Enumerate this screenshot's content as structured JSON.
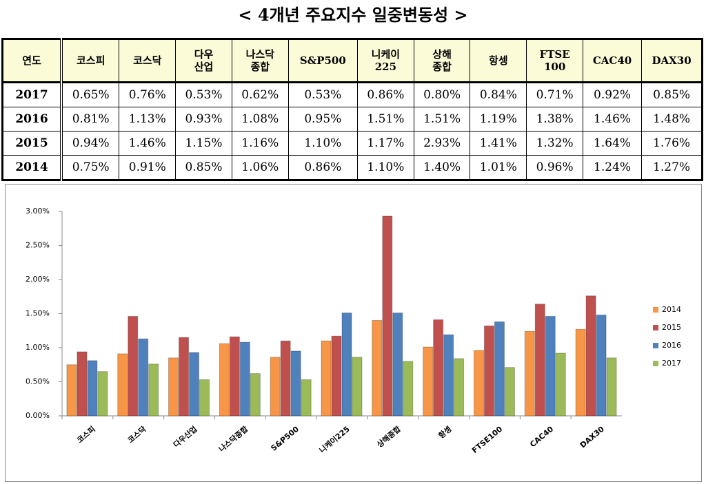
{
  "title": "< 4개년 주요지수 일중변동성 >",
  "table": {
    "header": [
      "연도",
      "코스피",
      "코스닥",
      "다우\n산업",
      "나스닥\n종합",
      "S&P500",
      "니케이\n225",
      "상해\n종합",
      "항셍",
      "FTSE\n100",
      "CAC40",
      "DAX30"
    ],
    "rows": [
      [
        "2017",
        "0.65%",
        "0.76%",
        "0.53%",
        "0.62%",
        "0.53%",
        "0.86%",
        "0.80%",
        "0.84%",
        "0.71%",
        "0.92%",
        "0.85%"
      ],
      [
        "2016",
        "0.81%",
        "1.13%",
        "0.93%",
        "1.08%",
        "0.95%",
        "1.51%",
        "1.51%",
        "1.19%",
        "1.38%",
        "1.46%",
        "1.48%"
      ],
      [
        "2015",
        "0.94%",
        "1.46%",
        "1.15%",
        "1.16%",
        "1.10%",
        "1.17%",
        "2.93%",
        "1.41%",
        "1.32%",
        "1.64%",
        "1.76%"
      ],
      [
        "2014",
        "0.75%",
        "0.91%",
        "0.85%",
        "1.06%",
        "0.86%",
        "1.10%",
        "1.40%",
        "1.01%",
        "0.96%",
        "1.24%",
        "1.27%"
      ]
    ]
  },
  "chart_data": {
    "type": "bar",
    "categories": [
      "코스피",
      "코스닥",
      "다우산업",
      "나스닥종합",
      "S&P500",
      "니케이225",
      "상해종합",
      "항셍",
      "FTSE100",
      "CAC40",
      "DAX30"
    ],
    "series": [
      {
        "name": "2014",
        "color": "#f79646",
        "values": [
          0.75,
          0.91,
          0.85,
          1.06,
          0.86,
          1.1,
          1.4,
          1.01,
          0.96,
          1.24,
          1.27
        ]
      },
      {
        "name": "2015",
        "color": "#c0504d",
        "values": [
          0.94,
          1.46,
          1.15,
          1.16,
          1.1,
          1.17,
          2.93,
          1.41,
          1.32,
          1.64,
          1.76
        ]
      },
      {
        "name": "2016",
        "color": "#4f81bd",
        "values": [
          0.81,
          1.13,
          0.93,
          1.08,
          0.95,
          1.51,
          1.51,
          1.19,
          1.38,
          1.46,
          1.48
        ]
      },
      {
        "name": "2017",
        "color": "#9bbb59",
        "values": [
          0.65,
          0.76,
          0.53,
          0.62,
          0.53,
          0.86,
          0.8,
          0.84,
          0.71,
          0.92,
          0.85
        ]
      }
    ],
    "ylim": [
      0,
      3
    ],
    "yticks": [
      {
        "value": 0,
        "label": "0.00%"
      },
      {
        "value": 0.5,
        "label": "0.50%"
      },
      {
        "value": 1,
        "label": "1.00%"
      },
      {
        "value": 1.5,
        "label": "1.50%"
      },
      {
        "value": 2,
        "label": "2.00%"
      },
      {
        "value": 2.5,
        "label": "2.50%"
      },
      {
        "value": 3,
        "label": "3.00%"
      }
    ],
    "legend": "right"
  }
}
